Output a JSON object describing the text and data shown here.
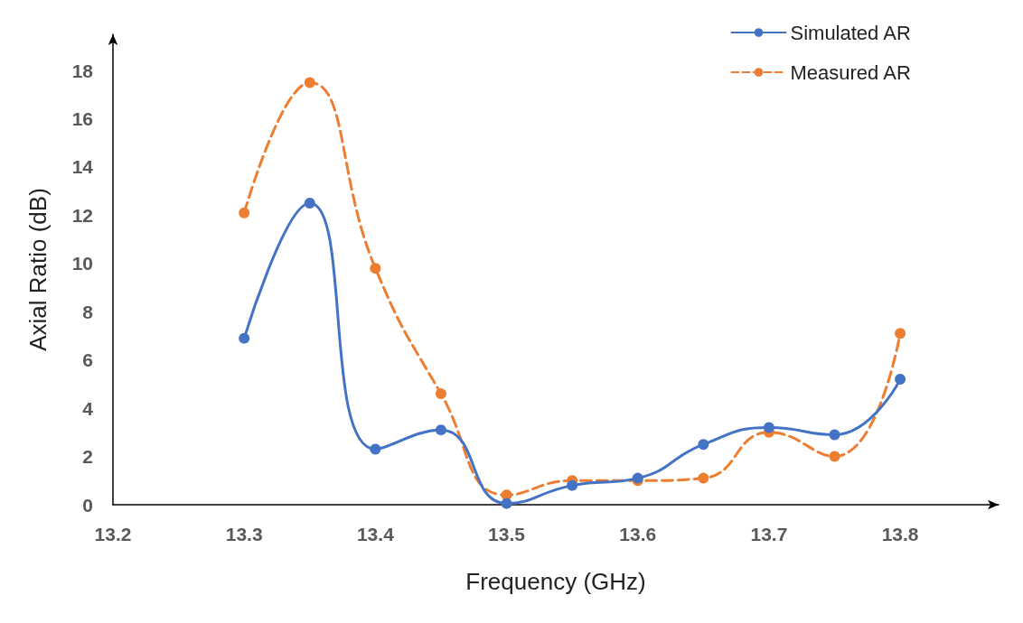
{
  "chart_data": {
    "type": "line",
    "xlabel": "Frequency (GHz)",
    "ylabel": "Axial Ratio (dB)",
    "x": [
      13.3,
      13.35,
      13.4,
      13.45,
      13.5,
      13.55,
      13.6,
      13.65,
      13.7,
      13.75,
      13.8
    ],
    "series": [
      {
        "name": "Simulated AR",
        "color": "#4472c4",
        "line_style": "solid",
        "values": [
          6.9,
          12.5,
          2.3,
          3.1,
          0.05,
          0.8,
          1.1,
          2.5,
          3.2,
          2.9,
          5.2
        ]
      },
      {
        "name": "Measured AR",
        "color": "#ed7d31",
        "line_style": "dashed",
        "values": [
          12.1,
          17.5,
          9.8,
          4.6,
          0.4,
          1.0,
          1.0,
          1.1,
          3.0,
          2.0,
          7.1
        ]
      }
    ],
    "xlim": [
      13.2,
      13.875
    ],
    "xticks": [
      13.2,
      13.3,
      13.4,
      13.5,
      13.6,
      13.7,
      13.8
    ],
    "ylim": [
      0,
      19.5
    ],
    "yticks": [
      0,
      2,
      4,
      6,
      8,
      10,
      12,
      14,
      16,
      18
    ],
    "grid": false,
    "legend": "top right",
    "marker": "circle"
  }
}
